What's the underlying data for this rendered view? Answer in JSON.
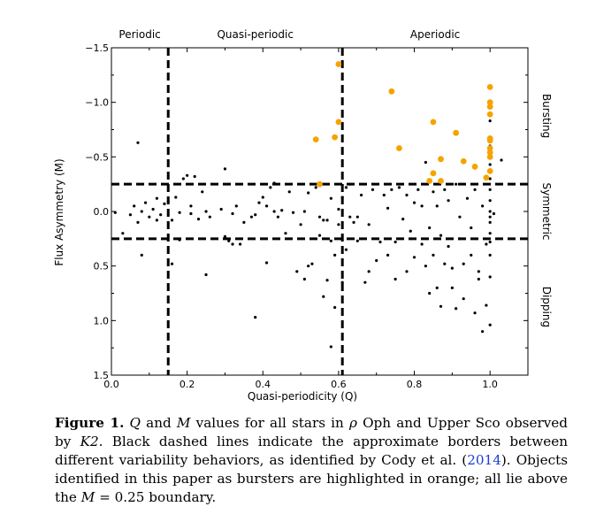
{
  "chart_data": {
    "type": "scatter",
    "xlabel": "Quasi-periodicity (Q)",
    "ylabel": "Flux Asymmetry (M)",
    "xlim": [
      0.0,
      1.1
    ],
    "ylim": [
      1.5,
      -1.5
    ],
    "y_inverted": true,
    "grid": false,
    "xticks": [
      "0.0",
      "0.2",
      "0.4",
      "0.6",
      "0.8",
      "1.0"
    ],
    "yticks": [
      "−1.5",
      "−1.0",
      "−0.5",
      "0.0",
      "0.5",
      "1.0",
      "1.5"
    ],
    "region_labels_top": [
      "Periodic",
      "Quasi-periodic",
      "Aperiodic"
    ],
    "region_labels_right": [
      "Bursting",
      "Symmetric",
      "Dipping"
    ],
    "boundaries": {
      "q": [
        0.15,
        0.61
      ],
      "m": [
        -0.25,
        0.25
      ]
    },
    "colors": {
      "stars": "#000000",
      "bursters": "#f5a300"
    },
    "series": [
      {
        "points": [
          [
            0.01,
            0.01
          ],
          [
            0.03,
            0.2
          ],
          [
            0.05,
            0.03
          ],
          [
            0.06,
            -0.05
          ],
          [
            0.07,
            0.1
          ],
          [
            0.07,
            -0.63
          ],
          [
            0.08,
            0.4
          ],
          [
            0.08,
            0.0
          ],
          [
            0.09,
            -0.08
          ],
          [
            0.1,
            0.05
          ],
          [
            0.11,
            -0.02
          ],
          [
            0.12,
            0.08
          ],
          [
            0.12,
            -0.12
          ],
          [
            0.13,
            0.03
          ],
          [
            0.14,
            -0.07
          ],
          [
            0.15,
            -0.09
          ],
          [
            0.16,
            0.08
          ],
          [
            0.16,
            0.48
          ],
          [
            0.17,
            -0.13
          ],
          [
            0.18,
            0.01
          ],
          [
            0.18,
            0.26
          ],
          [
            0.19,
            -0.3
          ],
          [
            0.2,
            -0.33
          ],
          [
            0.21,
            -0.05
          ],
          [
            0.21,
            0.02
          ],
          [
            0.22,
            -0.32
          ],
          [
            0.23,
            0.07
          ],
          [
            0.24,
            -0.18
          ],
          [
            0.25,
            0.0
          ],
          [
            0.25,
            0.58
          ],
          [
            0.26,
            0.05
          ],
          [
            0.29,
            -0.02
          ],
          [
            0.3,
            -0.39
          ],
          [
            0.3,
            0.23
          ],
          [
            0.31,
            0.27
          ],
          [
            0.32,
            0.3
          ],
          [
            0.32,
            0.02
          ],
          [
            0.33,
            -0.05
          ],
          [
            0.34,
            0.3
          ],
          [
            0.35,
            0.1
          ],
          [
            0.37,
            0.05
          ],
          [
            0.38,
            0.03
          ],
          [
            0.38,
            0.97
          ],
          [
            0.39,
            -0.08
          ],
          [
            0.4,
            -0.13
          ],
          [
            0.41,
            -0.05
          ],
          [
            0.41,
            0.47
          ],
          [
            0.42,
            -0.22
          ],
          [
            0.43,
            0.0
          ],
          [
            0.43,
            -0.26
          ],
          [
            0.44,
            0.05
          ],
          [
            0.45,
            -0.01
          ],
          [
            0.46,
            0.2
          ],
          [
            0.47,
            -0.18
          ],
          [
            0.48,
            0.01
          ],
          [
            0.49,
            0.55
          ],
          [
            0.5,
            0.12
          ],
          [
            0.51,
            0.0
          ],
          [
            0.51,
            0.62
          ],
          [
            0.52,
            0.5
          ],
          [
            0.52,
            -0.17
          ],
          [
            0.53,
            0.48
          ],
          [
            0.54,
            -0.22
          ],
          [
            0.55,
            0.22
          ],
          [
            0.55,
            0.05
          ],
          [
            0.56,
            0.08
          ],
          [
            0.56,
            0.78
          ],
          [
            0.57,
            0.63
          ],
          [
            0.57,
            0.08
          ],
          [
            0.58,
            -0.12
          ],
          [
            0.58,
            0.27
          ],
          [
            0.58,
            1.24
          ],
          [
            0.59,
            0.4
          ],
          [
            0.59,
            0.88
          ],
          [
            0.6,
            -0.02
          ],
          [
            0.6,
            0.12
          ],
          [
            0.61,
            0.65
          ],
          [
            0.61,
            -0.13
          ],
          [
            0.62,
            -0.22
          ],
          [
            0.62,
            0.35
          ],
          [
            0.63,
            0.05
          ],
          [
            0.63,
            -0.25
          ],
          [
            0.64,
            0.1
          ],
          [
            0.65,
            0.05
          ],
          [
            0.65,
            0.27
          ],
          [
            0.66,
            -0.15
          ],
          [
            0.67,
            0.65
          ],
          [
            0.68,
            0.55
          ],
          [
            0.68,
            0.12
          ],
          [
            0.69,
            -0.2
          ],
          [
            0.7,
            0.45
          ],
          [
            0.71,
            0.28
          ],
          [
            0.72,
            -0.15
          ],
          [
            0.73,
            0.4
          ],
          [
            0.73,
            -0.03
          ],
          [
            0.74,
            -0.2
          ],
          [
            0.75,
            0.62
          ],
          [
            0.75,
            0.28
          ],
          [
            0.76,
            -0.22
          ],
          [
            0.77,
            0.07
          ],
          [
            0.78,
            -0.15
          ],
          [
            0.78,
            0.55
          ],
          [
            0.79,
            0.18
          ],
          [
            0.8,
            -0.08
          ],
          [
            0.8,
            0.42
          ],
          [
            0.81,
            -0.2
          ],
          [
            0.82,
            0.3
          ],
          [
            0.82,
            -0.05
          ],
          [
            0.83,
            -0.45
          ],
          [
            0.83,
            0.5
          ],
          [
            0.84,
            0.75
          ],
          [
            0.84,
            0.15
          ],
          [
            0.85,
            -0.18
          ],
          [
            0.85,
            0.4
          ],
          [
            0.86,
            -0.05
          ],
          [
            0.86,
            0.7
          ],
          [
            0.87,
            0.22
          ],
          [
            0.87,
            0.87
          ],
          [
            0.88,
            -0.2
          ],
          [
            0.88,
            0.48
          ],
          [
            0.89,
            0.32
          ],
          [
            0.89,
            -0.1
          ],
          [
            0.9,
            0.52
          ],
          [
            0.9,
            0.7
          ],
          [
            0.91,
            -0.25
          ],
          [
            0.91,
            0.89
          ],
          [
            0.92,
            0.25
          ],
          [
            0.92,
            0.05
          ],
          [
            0.93,
            0.48
          ],
          [
            0.93,
            0.8
          ],
          [
            0.94,
            -0.12
          ],
          [
            0.95,
            0.15
          ],
          [
            0.95,
            0.4
          ],
          [
            0.96,
            0.93
          ],
          [
            0.96,
            -0.2
          ],
          [
            0.97,
            0.62
          ],
          [
            0.97,
            0.55
          ],
          [
            0.98,
            -0.05
          ],
          [
            0.98,
            1.1
          ],
          [
            0.99,
            0.3
          ],
          [
            0.99,
            0.86
          ],
          [
            1.0,
            -0.83
          ],
          [
            1.0,
            -0.6
          ],
          [
            1.0,
            -0.43
          ],
          [
            1.0,
            -0.3
          ],
          [
            1.0,
            -0.2
          ],
          [
            1.0,
            -0.1
          ],
          [
            1.0,
            0.0
          ],
          [
            1.0,
            0.05
          ],
          [
            1.0,
            0.1
          ],
          [
            1.0,
            0.2
          ],
          [
            1.0,
            0.28
          ],
          [
            1.0,
            0.4
          ],
          [
            1.0,
            0.6
          ],
          [
            1.0,
            1.04
          ],
          [
            1.01,
            0.02
          ],
          [
            1.03,
            -0.47
          ]
        ]
      },
      {
        "points": [
          [
            0.54,
            -0.66
          ],
          [
            0.55,
            -0.25
          ],
          [
            0.59,
            -0.68
          ],
          [
            0.6,
            -0.82
          ],
          [
            0.6,
            -1.35
          ],
          [
            0.74,
            -1.1
          ],
          [
            0.76,
            -0.58
          ],
          [
            0.84,
            -0.28
          ],
          [
            0.85,
            -0.35
          ],
          [
            0.85,
            -0.82
          ],
          [
            0.87,
            -0.28
          ],
          [
            0.87,
            -0.48
          ],
          [
            0.91,
            -0.72
          ],
          [
            0.93,
            -0.46
          ],
          [
            0.96,
            -0.41
          ],
          [
            0.99,
            -0.31
          ],
          [
            1.0,
            -0.37
          ],
          [
            1.0,
            -0.5
          ],
          [
            1.0,
            -0.54
          ],
          [
            1.0,
            -0.58
          ],
          [
            1.0,
            -0.65
          ],
          [
            1.0,
            -0.67
          ],
          [
            1.0,
            -0.89
          ],
          [
            1.0,
            -0.96
          ],
          [
            1.0,
            -1.0
          ],
          [
            1.0,
            -1.14
          ]
        ]
      }
    ]
  },
  "caption": {
    "fig_num": "Figure 1.",
    "s1": " ",
    "q": "Q",
    "s2": " and ",
    "m": "M",
    "s3": " values for all stars in ",
    "rho": "ρ",
    "s4": " Oph and Upper Sco observed by ",
    "k2": "K2",
    "s5": ". Black dashed lines indicate the approximate borders between different variability behaviors, as identified by Cody et al. (",
    "year": "2014",
    "s6": "). Objects identified in this paper as bursters are highlighted in orange; all lie above the ",
    "m2": "M",
    "s7": " = 0.25 boundary."
  }
}
